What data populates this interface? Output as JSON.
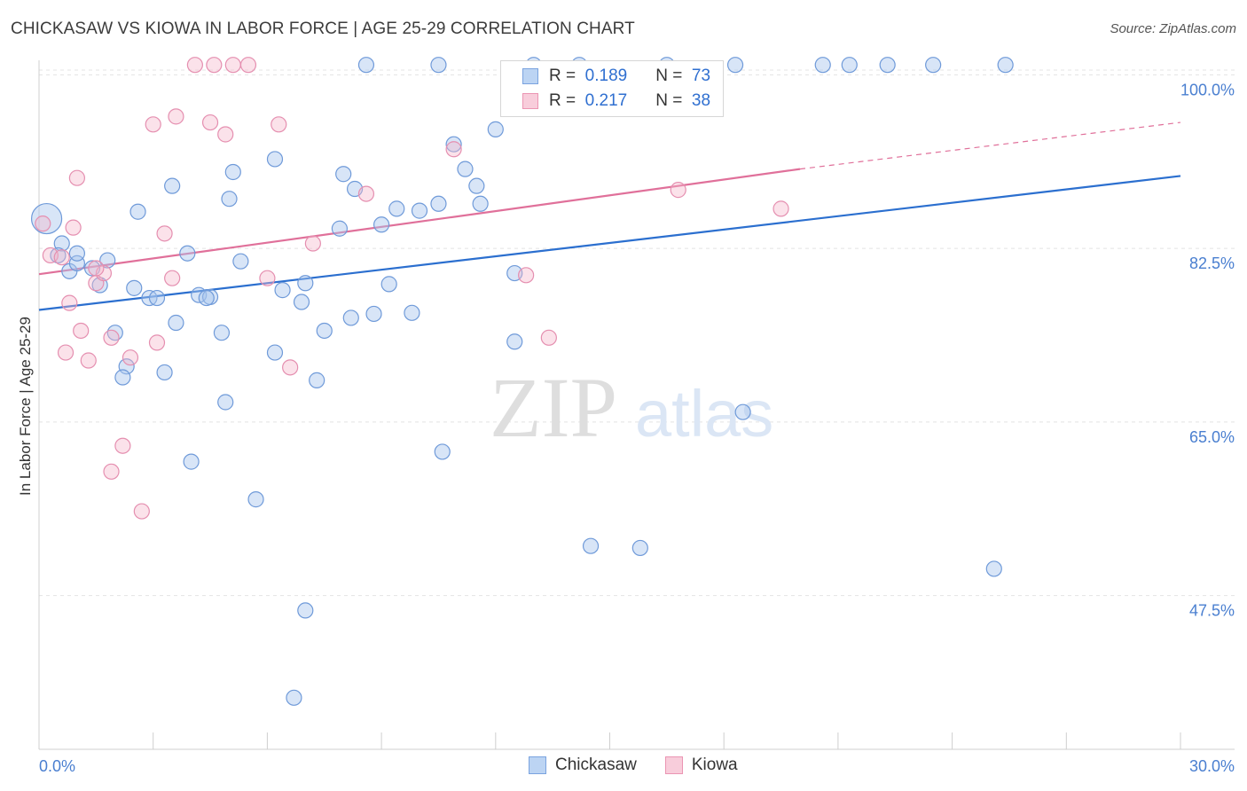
{
  "title": "CHICKASAW VS KIOWA IN LABOR FORCE | AGE 25-29 CORRELATION CHART",
  "source": "Source: ZipAtlas.com",
  "watermark": {
    "zip": "ZIP",
    "atlas": "atlas"
  },
  "legend": {
    "rows": [
      {
        "r_label": "R =",
        "r_value": "0.189",
        "n_label": "N =",
        "n_value": "73"
      },
      {
        "r_label": "R =",
        "r_value": "0.217",
        "n_label": "N =",
        "n_value": "38"
      }
    ]
  },
  "chart_data": {
    "type": "scatter",
    "title": "CHICKASAW VS KIOWA IN LABOR FORCE | AGE 25-29 CORRELATION CHART",
    "xlabel": "",
    "ylabel": "In Labor Force | Age 25-29",
    "xlim": [
      0,
      30
    ],
    "ylim": [
      32,
      102
    ],
    "x_tick_labels": [
      "0.0%",
      "30.0%"
    ],
    "y_ticks": [
      47.5,
      65.0,
      82.5,
      100.0
    ],
    "y_tick_labels": [
      "47.5%",
      "65.0%",
      "82.5%",
      "100.0%"
    ],
    "grid": true,
    "legend_position": "top-center",
    "colors": {
      "Chickasaw": "#a8c6ee",
      "Kiowa": "#f4b6cb",
      "Chickasaw_line": "#2b6fcf",
      "Kiowa_line": "#e0709a"
    },
    "series": [
      {
        "name": "Chickasaw",
        "r": 0.189,
        "n": 73,
        "trend": {
          "x": [
            0,
            30
          ],
          "y": [
            76.3,
            89.8
          ]
        },
        "points": [
          [
            0.2,
            85.5
          ],
          [
            0.6,
            83.0
          ],
          [
            0.5,
            81.8
          ],
          [
            0.8,
            80.2
          ],
          [
            1.0,
            81.0
          ],
          [
            1.8,
            81.3
          ],
          [
            1.4,
            80.5
          ],
          [
            1.6,
            78.8
          ],
          [
            2.5,
            78.5
          ],
          [
            2.9,
            77.5
          ],
          [
            3.1,
            77.5
          ],
          [
            2.0,
            74.0
          ],
          [
            3.6,
            75.0
          ],
          [
            2.3,
            70.6
          ],
          [
            2.2,
            69.5
          ],
          [
            3.3,
            70.0
          ],
          [
            2.6,
            86.2
          ],
          [
            3.5,
            88.8
          ],
          [
            3.9,
            82.0
          ],
          [
            4.2,
            77.8
          ],
          [
            4.5,
            77.6
          ],
          [
            4.4,
            77.5
          ],
          [
            4.8,
            74.0
          ],
          [
            5.1,
            90.2
          ],
          [
            5.3,
            81.2
          ],
          [
            6.2,
            91.5
          ],
          [
            6.4,
            78.3
          ],
          [
            6.2,
            72.0
          ],
          [
            7.0,
            79.0
          ],
          [
            6.9,
            77.1
          ],
          [
            7.5,
            74.2
          ],
          [
            7.3,
            69.2
          ],
          [
            7.9,
            84.5
          ],
          [
            8.0,
            90.0
          ],
          [
            8.3,
            88.5
          ],
          [
            8.2,
            75.5
          ],
          [
            8.8,
            75.9
          ],
          [
            9.0,
            84.9
          ],
          [
            9.2,
            78.9
          ],
          [
            9.4,
            86.5
          ],
          [
            9.8,
            76.0
          ],
          [
            10.0,
            86.3
          ],
          [
            10.5,
            87.0
          ],
          [
            10.9,
            93.0
          ],
          [
            11.2,
            90.5
          ],
          [
            11.5,
            88.8
          ],
          [
            11.6,
            87.0
          ],
          [
            12.0,
            94.5
          ],
          [
            12.5,
            80.0
          ],
          [
            12.5,
            73.1
          ],
          [
            10.6,
            62.0
          ],
          [
            14.5,
            52.5
          ],
          [
            15.8,
            52.3
          ],
          [
            18.5,
            66.0
          ],
          [
            25.1,
            50.2
          ],
          [
            8.6,
            101.0
          ],
          [
            10.5,
            101.0
          ],
          [
            13.0,
            101.0
          ],
          [
            14.2,
            101.0
          ],
          [
            16.5,
            101.0
          ],
          [
            18.3,
            101.0
          ],
          [
            20.6,
            101.0
          ],
          [
            21.3,
            101.0
          ],
          [
            22.3,
            101.0
          ],
          [
            23.5,
            101.0
          ],
          [
            25.4,
            101.0
          ],
          [
            6.7,
            37.2
          ],
          [
            7.0,
            46.0
          ],
          [
            4.0,
            61.0
          ],
          [
            5.7,
            57.2
          ],
          [
            4.9,
            67.0
          ],
          [
            1.0,
            82.0
          ],
          [
            5.0,
            87.5
          ]
        ]
      },
      {
        "name": "Kiowa",
        "r": 0.217,
        "n": 38,
        "trend": {
          "x": [
            0,
            20
          ],
          "y": [
            79.9,
            90.5
          ],
          "dashed_to": {
            "x": 30,
            "y": 95.2
          }
        },
        "points": [
          [
            0.1,
            85.0
          ],
          [
            0.3,
            81.8
          ],
          [
            0.6,
            81.6
          ],
          [
            0.9,
            84.6
          ],
          [
            1.0,
            89.6
          ],
          [
            0.8,
            77.0
          ],
          [
            1.1,
            74.2
          ],
          [
            1.3,
            71.2
          ],
          [
            0.7,
            72.0
          ],
          [
            1.5,
            79.0
          ],
          [
            1.7,
            80.0
          ],
          [
            1.9,
            73.5
          ],
          [
            2.4,
            71.5
          ],
          [
            2.2,
            62.6
          ],
          [
            1.9,
            60.0
          ],
          [
            2.7,
            56.0
          ],
          [
            3.1,
            73.0
          ],
          [
            3.3,
            84.0
          ],
          [
            3.5,
            79.5
          ],
          [
            3.0,
            95.0
          ],
          [
            3.6,
            95.8
          ],
          [
            4.1,
            101.0
          ],
          [
            4.6,
            101.0
          ],
          [
            5.1,
            101.0
          ],
          [
            4.5,
            95.2
          ],
          [
            4.9,
            94.0
          ],
          [
            6.0,
            79.5
          ],
          [
            6.6,
            70.5
          ],
          [
            7.2,
            83.0
          ],
          [
            6.3,
            95.0
          ],
          [
            8.6,
            88.0
          ],
          [
            10.9,
            92.5
          ],
          [
            12.8,
            79.8
          ],
          [
            13.4,
            73.5
          ],
          [
            16.8,
            88.4
          ],
          [
            19.5,
            86.5
          ],
          [
            5.5,
            101.0
          ],
          [
            1.5,
            80.5
          ]
        ]
      }
    ]
  }
}
